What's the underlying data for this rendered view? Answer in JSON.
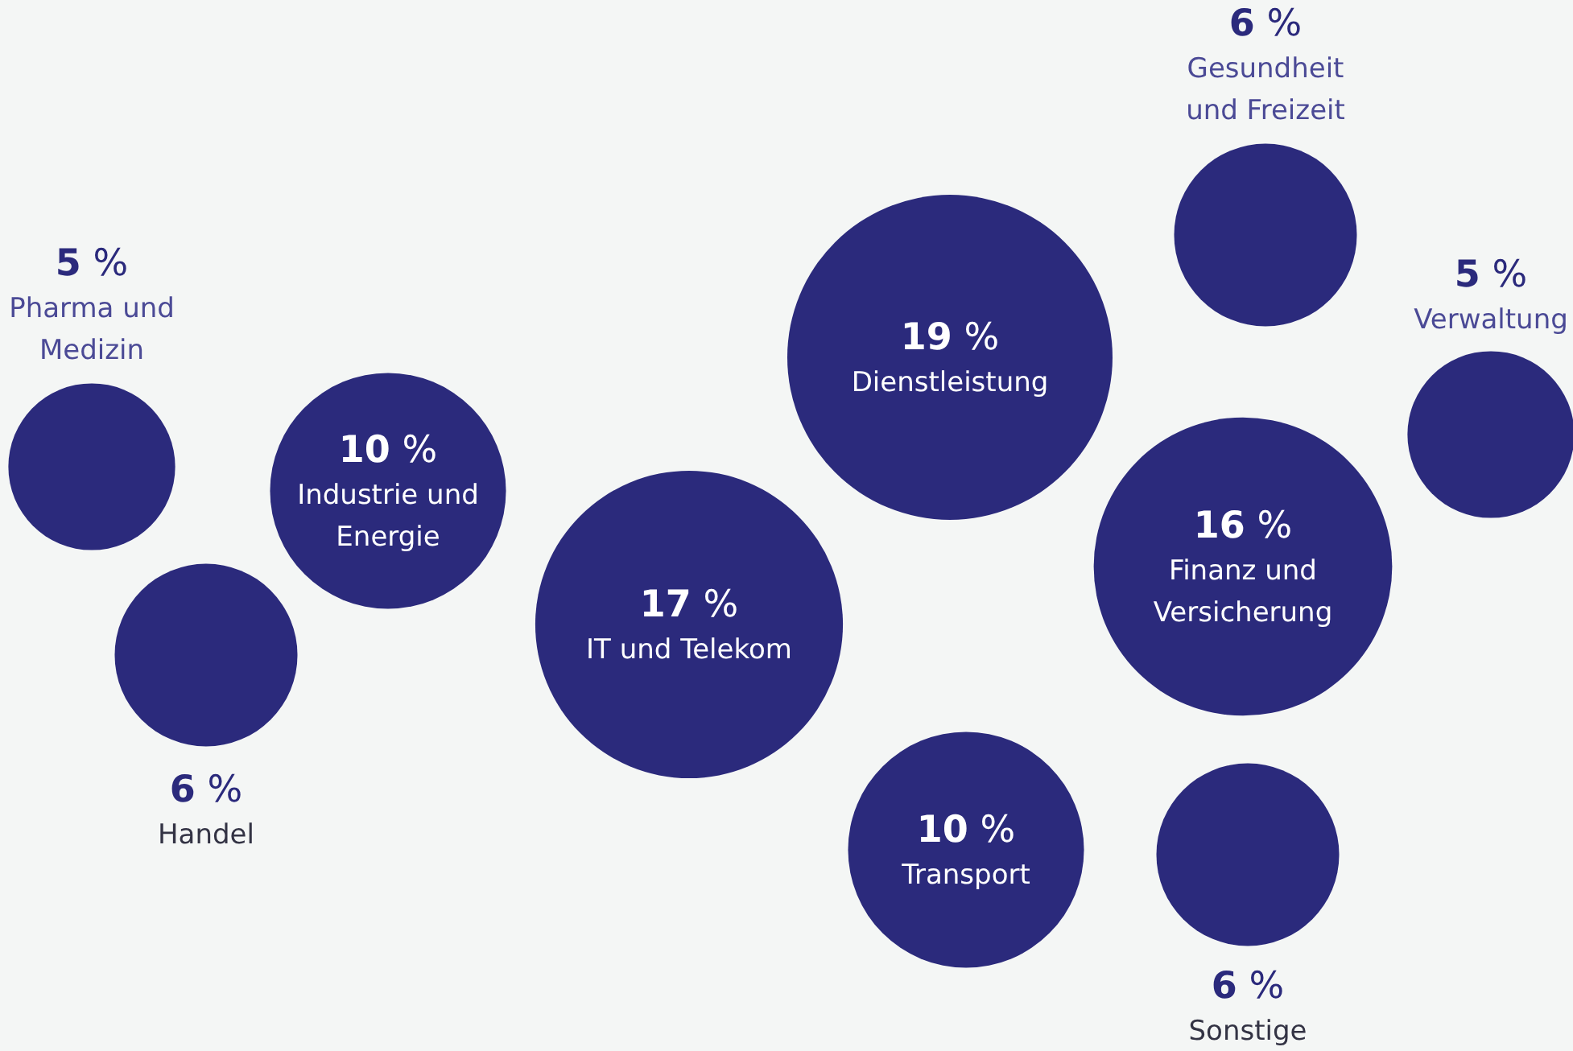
{
  "chart_data": {
    "type": "other",
    "categories": [
      "Pharma und Medizin",
      "Handel",
      "Industrie und Energie",
      "IT und Telekom",
      "Dienstleistung",
      "Transport",
      "Gesundheit und Freizeit",
      "Finanz und Versicherung",
      "Sonstige",
      "Verwaltung"
    ],
    "values": [
      5,
      6,
      10,
      17,
      19,
      10,
      6,
      16,
      6,
      5
    ],
    "value_labels": [
      "5 %",
      "6 %",
      "10 %",
      "17 %",
      "19 %",
      "10 %",
      "6 %",
      "16 %",
      "6 %",
      "5 %"
    ],
    "colors": [
      "#2b2a7c",
      "#2b2a7c",
      "#2b2a7c",
      "#2b2a7c",
      "#2b2a7c",
      "#2b2a7c",
      "#2b2a7c",
      "#2b2a7c",
      "#2b2a7c",
      "#2b2a7c"
    ]
  }
}
